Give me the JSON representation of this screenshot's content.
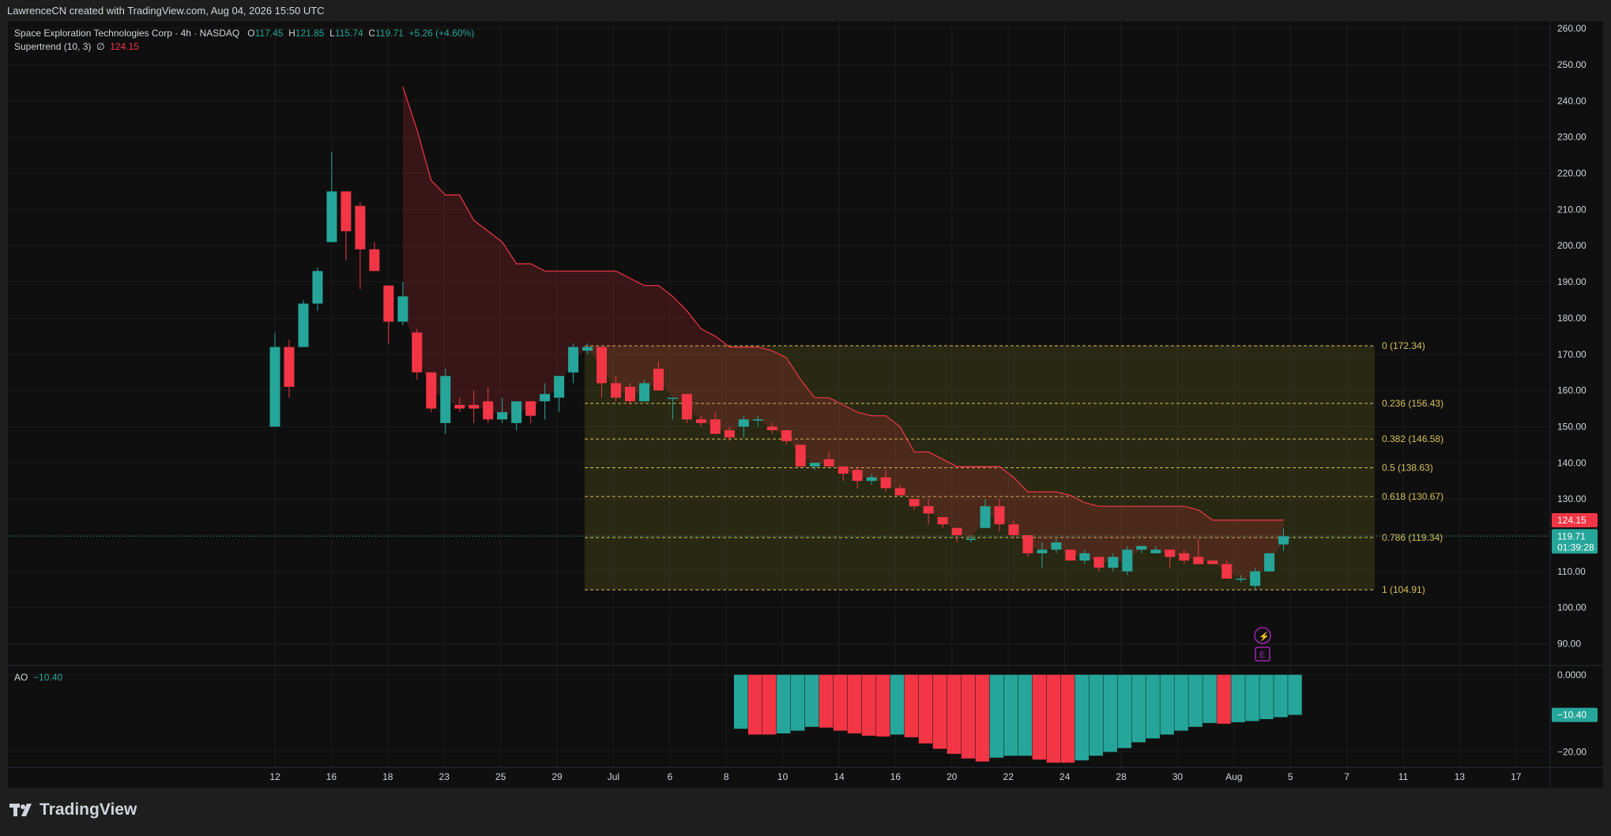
{
  "header": {
    "credit": "LawrenceCN created with TradingView.com, Aug 04, 2026 15:50 UTC"
  },
  "legend": {
    "symbol": "Space Exploration Technologies Corp · 4h · NASDAQ",
    "o_label": "O",
    "o": "117.45",
    "h_label": "H",
    "h": "121.85",
    "l_label": "L",
    "l": "115.74",
    "c_label": "C",
    "c": "119.71",
    "change": "+5.26 (+4.60%)",
    "indicator": "Supertrend (10, 3)",
    "indicator_symbol": "∅",
    "indicator_value": "124.15"
  },
  "ao_legend": {
    "name": "AO",
    "value": "−10.40"
  },
  "footer": {
    "brand": "TradingView"
  },
  "colors": {
    "up": "#26a69a",
    "down": "#f23645",
    "supertrend": "#f23645",
    "fib": "#d6c05a",
    "event": "#9c27b0"
  },
  "chart_data": {
    "type": "candlestick",
    "price_axis": {
      "min": 84,
      "max": 262,
      "ticks": [
        90,
        100,
        110,
        120,
        130,
        140,
        150,
        160,
        170,
        180,
        190,
        200,
        210,
        220,
        230,
        240,
        250,
        260
      ]
    },
    "time_axis_labels": [
      "12",
      "16",
      "18",
      "23",
      "25",
      "29",
      "Jul",
      "6",
      "8",
      "10",
      "14",
      "16",
      "20",
      "22",
      "24",
      "28",
      "30",
      "Aug",
      "5",
      "7",
      "11",
      "13",
      "17"
    ],
    "candles": [
      {
        "o": 150,
        "h": 176,
        "l": 150,
        "c": 172
      },
      {
        "o": 172,
        "h": 174,
        "l": 158,
        "c": 161
      },
      {
        "o": 172,
        "h": 185,
        "l": 172,
        "c": 184
      },
      {
        "o": 184,
        "h": 194,
        "l": 182,
        "c": 193
      },
      {
        "o": 201,
        "h": 226,
        "l": 201,
        "c": 215
      },
      {
        "o": 215,
        "h": 215,
        "l": 196,
        "c": 204
      },
      {
        "o": 211,
        "h": 212,
        "l": 188,
        "c": 199
      },
      {
        "o": 199,
        "h": 201,
        "l": 193,
        "c": 193
      },
      {
        "o": 189,
        "h": 189,
        "l": 173,
        "c": 179
      },
      {
        "o": 179,
        "h": 190,
        "l": 178,
        "c": 186
      },
      {
        "o": 176,
        "h": 177,
        "l": 163,
        "c": 165
      },
      {
        "o": 165,
        "h": 165,
        "l": 154,
        "c": 155
      },
      {
        "o": 151,
        "h": 166,
        "l": 148,
        "c": 164
      },
      {
        "o": 156,
        "h": 158,
        "l": 154,
        "c": 155
      },
      {
        "o": 156,
        "h": 160,
        "l": 151,
        "c": 155
      },
      {
        "o": 157,
        "h": 161,
        "l": 151,
        "c": 152
      },
      {
        "o": 152,
        "h": 158,
        "l": 151,
        "c": 154
      },
      {
        "o": 151,
        "h": 157,
        "l": 149,
        "c": 157
      },
      {
        "o": 157,
        "h": 157,
        "l": 151,
        "c": 153
      },
      {
        "o": 157,
        "h": 162,
        "l": 152,
        "c": 159
      },
      {
        "o": 158,
        "h": 164,
        "l": 154,
        "c": 164
      },
      {
        "o": 165,
        "h": 173,
        "l": 162,
        "c": 172
      },
      {
        "o": 171,
        "h": 173,
        "l": 170,
        "c": 172
      },
      {
        "o": 172,
        "h": 172,
        "l": 158,
        "c": 162
      },
      {
        "o": 162,
        "h": 164,
        "l": 157,
        "c": 158
      },
      {
        "o": 161,
        "h": 162,
        "l": 156,
        "c": 157
      },
      {
        "o": 157,
        "h": 163,
        "l": 157,
        "c": 162
      },
      {
        "o": 166,
        "h": 168,
        "l": 160,
        "c": 160
      },
      {
        "o": 158,
        "h": 158,
        "l": 152,
        "c": 158
      },
      {
        "o": 159,
        "h": 159,
        "l": 151,
        "c": 152
      },
      {
        "o": 152,
        "h": 153,
        "l": 150,
        "c": 151
      },
      {
        "o": 152,
        "h": 154,
        "l": 148,
        "c": 148
      },
      {
        "o": 149,
        "h": 150,
        "l": 146,
        "c": 147
      },
      {
        "o": 150,
        "h": 153,
        "l": 147,
        "c": 152
      },
      {
        "o": 152,
        "h": 153,
        "l": 150,
        "c": 152
      },
      {
        "o": 150,
        "h": 151,
        "l": 148,
        "c": 149
      },
      {
        "o": 149,
        "h": 149,
        "l": 145,
        "c": 146
      },
      {
        "o": 145,
        "h": 145,
        "l": 139,
        "c": 139
      },
      {
        "o": 139,
        "h": 140,
        "l": 138,
        "c": 140
      },
      {
        "o": 141,
        "h": 143,
        "l": 139,
        "c": 139
      },
      {
        "o": 139,
        "h": 139,
        "l": 135,
        "c": 137
      },
      {
        "o": 138,
        "h": 139,
        "l": 133,
        "c": 135
      },
      {
        "o": 135,
        "h": 137,
        "l": 134,
        "c": 136
      },
      {
        "o": 136,
        "h": 138,
        "l": 132,
        "c": 133
      },
      {
        "o": 133,
        "h": 134,
        "l": 131,
        "c": 131
      },
      {
        "o": 130,
        "h": 130,
        "l": 127,
        "c": 128
      },
      {
        "o": 128,
        "h": 130,
        "l": 123,
        "c": 126
      },
      {
        "o": 125,
        "h": 125,
        "l": 122,
        "c": 123
      },
      {
        "o": 122,
        "h": 122,
        "l": 118,
        "c": 120
      },
      {
        "o": 119,
        "h": 120,
        "l": 118,
        "c": 119
      },
      {
        "o": 122,
        "h": 130,
        "l": 122,
        "c": 128
      },
      {
        "o": 128,
        "h": 130,
        "l": 121,
        "c": 123
      },
      {
        "o": 123,
        "h": 124,
        "l": 119,
        "c": 120
      },
      {
        "o": 120,
        "h": 120,
        "l": 114,
        "c": 115
      },
      {
        "o": 115,
        "h": 118,
        "l": 111,
        "c": 116
      },
      {
        "o": 116,
        "h": 119,
        "l": 115,
        "c": 118
      },
      {
        "o": 116,
        "h": 116,
        "l": 113,
        "c": 113
      },
      {
        "o": 113,
        "h": 116,
        "l": 112,
        "c": 115
      },
      {
        "o": 114,
        "h": 114,
        "l": 110,
        "c": 111
      },
      {
        "o": 111,
        "h": 115,
        "l": 110,
        "c": 114
      },
      {
        "o": 110,
        "h": 117,
        "l": 109,
        "c": 116
      },
      {
        "o": 116,
        "h": 117,
        "l": 115,
        "c": 117
      },
      {
        "o": 115,
        "h": 117,
        "l": 115,
        "c": 116
      },
      {
        "o": 116,
        "h": 116,
        "l": 111,
        "c": 114
      },
      {
        "o": 115,
        "h": 116,
        "l": 112,
        "c": 113
      },
      {
        "o": 114,
        "h": 119,
        "l": 112,
        "c": 112
      },
      {
        "o": 113,
        "h": 113,
        "l": 112,
        "c": 112
      },
      {
        "o": 112,
        "h": 113,
        "l": 108,
        "c": 108
      },
      {
        "o": 108,
        "h": 109,
        "l": 107,
        "c": 108
      },
      {
        "o": 106,
        "h": 111,
        "l": 105,
        "c": 110
      },
      {
        "o": 110,
        "h": 115,
        "l": 110,
        "c": 115
      },
      {
        "o": 117.45,
        "h": 121.85,
        "l": 115.74,
        "c": 119.71
      }
    ],
    "supertrend": [
      {
        "i": 9,
        "v": 244
      },
      {
        "i": 10,
        "v": 232
      },
      {
        "i": 11,
        "v": 218
      },
      {
        "i": 12,
        "v": 214
      },
      {
        "i": 13,
        "v": 214
      },
      {
        "i": 14,
        "v": 207
      },
      {
        "i": 15,
        "v": 204
      },
      {
        "i": 16,
        "v": 201
      },
      {
        "i": 17,
        "v": 195
      },
      {
        "i": 18,
        "v": 195
      },
      {
        "i": 19,
        "v": 193
      },
      {
        "i": 20,
        "v": 193
      },
      {
        "i": 21,
        "v": 193
      },
      {
        "i": 22,
        "v": 193
      },
      {
        "i": 23,
        "v": 193
      },
      {
        "i": 24,
        "v": 193
      },
      {
        "i": 25,
        "v": 191
      },
      {
        "i": 26,
        "v": 189
      },
      {
        "i": 27,
        "v": 189
      },
      {
        "i": 28,
        "v": 186
      },
      {
        "i": 29,
        "v": 182
      },
      {
        "i": 30,
        "v": 177
      },
      {
        "i": 31,
        "v": 175
      },
      {
        "i": 32,
        "v": 172
      },
      {
        "i": 33,
        "v": 172
      },
      {
        "i": 34,
        "v": 172
      },
      {
        "i": 35,
        "v": 171
      },
      {
        "i": 36,
        "v": 169
      },
      {
        "i": 37,
        "v": 163
      },
      {
        "i": 38,
        "v": 158
      },
      {
        "i": 39,
        "v": 158
      },
      {
        "i": 40,
        "v": 156
      },
      {
        "i": 41,
        "v": 154
      },
      {
        "i": 42,
        "v": 153
      },
      {
        "i": 43,
        "v": 153
      },
      {
        "i": 44,
        "v": 150
      },
      {
        "i": 45,
        "v": 143
      },
      {
        "i": 46,
        "v": 143
      },
      {
        "i": 47,
        "v": 141
      },
      {
        "i": 48,
        "v": 139
      },
      {
        "i": 49,
        "v": 139
      },
      {
        "i": 50,
        "v": 139
      },
      {
        "i": 51,
        "v": 139
      },
      {
        "i": 52,
        "v": 136
      },
      {
        "i": 53,
        "v": 132
      },
      {
        "i": 54,
        "v": 132
      },
      {
        "i": 55,
        "v": 132
      },
      {
        "i": 56,
        "v": 131
      },
      {
        "i": 57,
        "v": 129
      },
      {
        "i": 58,
        "v": 128
      },
      {
        "i": 59,
        "v": 128
      },
      {
        "i": 60,
        "v": 128
      },
      {
        "i": 61,
        "v": 128
      },
      {
        "i": 62,
        "v": 128
      },
      {
        "i": 63,
        "v": 128
      },
      {
        "i": 64,
        "v": 128
      },
      {
        "i": 65,
        "v": 127
      },
      {
        "i": 66,
        "v": 124.15
      },
      {
        "i": 67,
        "v": 124.15
      },
      {
        "i": 68,
        "v": 124.15
      },
      {
        "i": 69,
        "v": 124.15
      },
      {
        "i": 70,
        "v": 124.15
      },
      {
        "i": 71,
        "v": 124.15
      }
    ],
    "fibonacci": {
      "levels": [
        {
          "ratio": "0",
          "price": 172.34,
          "label": "0 (172.34)"
        },
        {
          "ratio": "0.236",
          "price": 156.43,
          "label": "0.236 (156.43)"
        },
        {
          "ratio": "0.382",
          "price": 146.58,
          "label": "0.382 (146.58)"
        },
        {
          "ratio": "0.5",
          "price": 138.63,
          "label": "0.5 (138.63)"
        },
        {
          "ratio": "0.618",
          "price": 130.67,
          "label": "0.618 (130.67)"
        },
        {
          "ratio": "0.786",
          "price": 119.34,
          "label": "0.786 (119.34)"
        },
        {
          "ratio": "1",
          "price": 104.91,
          "label": "1 (104.91)"
        }
      ]
    },
    "price_labels": {
      "supertrend": "124.15",
      "last_price": "119.71",
      "countdown": "01:39:28",
      "last_value": 119.71
    },
    "ao": {
      "axis_ticks": [
        {
          "v": 0,
          "label": "0.0000"
        },
        {
          "v": -20,
          "label": "−20.00"
        }
      ],
      "axis_min": -24,
      "axis_max": 2,
      "value_label": "−10.40",
      "value": -10.4,
      "bars": [
        {
          "v": -14,
          "c": "g"
        },
        {
          "v": -15.5,
          "c": "r"
        },
        {
          "v": -15.5,
          "c": "r"
        },
        {
          "v": -15.2,
          "c": "g"
        },
        {
          "v": -14.5,
          "c": "g"
        },
        {
          "v": -13.5,
          "c": "g"
        },
        {
          "v": -13.7,
          "c": "r"
        },
        {
          "v": -14.5,
          "c": "r"
        },
        {
          "v": -15.2,
          "c": "r"
        },
        {
          "v": -15.8,
          "c": "r"
        },
        {
          "v": -16,
          "c": "r"
        },
        {
          "v": -15.5,
          "c": "g"
        },
        {
          "v": -16.2,
          "c": "r"
        },
        {
          "v": -17.8,
          "c": "r"
        },
        {
          "v": -19.2,
          "c": "r"
        },
        {
          "v": -20.5,
          "c": "r"
        },
        {
          "v": -21.7,
          "c": "r"
        },
        {
          "v": -22.5,
          "c": "r"
        },
        {
          "v": -21.5,
          "c": "g"
        },
        {
          "v": -21,
          "c": "g"
        },
        {
          "v": -21,
          "c": "g"
        },
        {
          "v": -22,
          "c": "r"
        },
        {
          "v": -22.8,
          "c": "r"
        },
        {
          "v": -22.8,
          "c": "r"
        },
        {
          "v": -22.2,
          "c": "g"
        },
        {
          "v": -21,
          "c": "g"
        },
        {
          "v": -20,
          "c": "g"
        },
        {
          "v": -19,
          "c": "g"
        },
        {
          "v": -17.5,
          "c": "g"
        },
        {
          "v": -16.5,
          "c": "g"
        },
        {
          "v": -15.5,
          "c": "g"
        },
        {
          "v": -14.5,
          "c": "g"
        },
        {
          "v": -13.5,
          "c": "g"
        },
        {
          "v": -12.5,
          "c": "g"
        },
        {
          "v": -12.7,
          "c": "r"
        },
        {
          "v": -12.3,
          "c": "g"
        },
        {
          "v": -12,
          "c": "g"
        },
        {
          "v": -11.5,
          "c": "g"
        },
        {
          "v": -11,
          "c": "g"
        },
        {
          "v": -10.4,
          "c": "g"
        }
      ]
    }
  }
}
